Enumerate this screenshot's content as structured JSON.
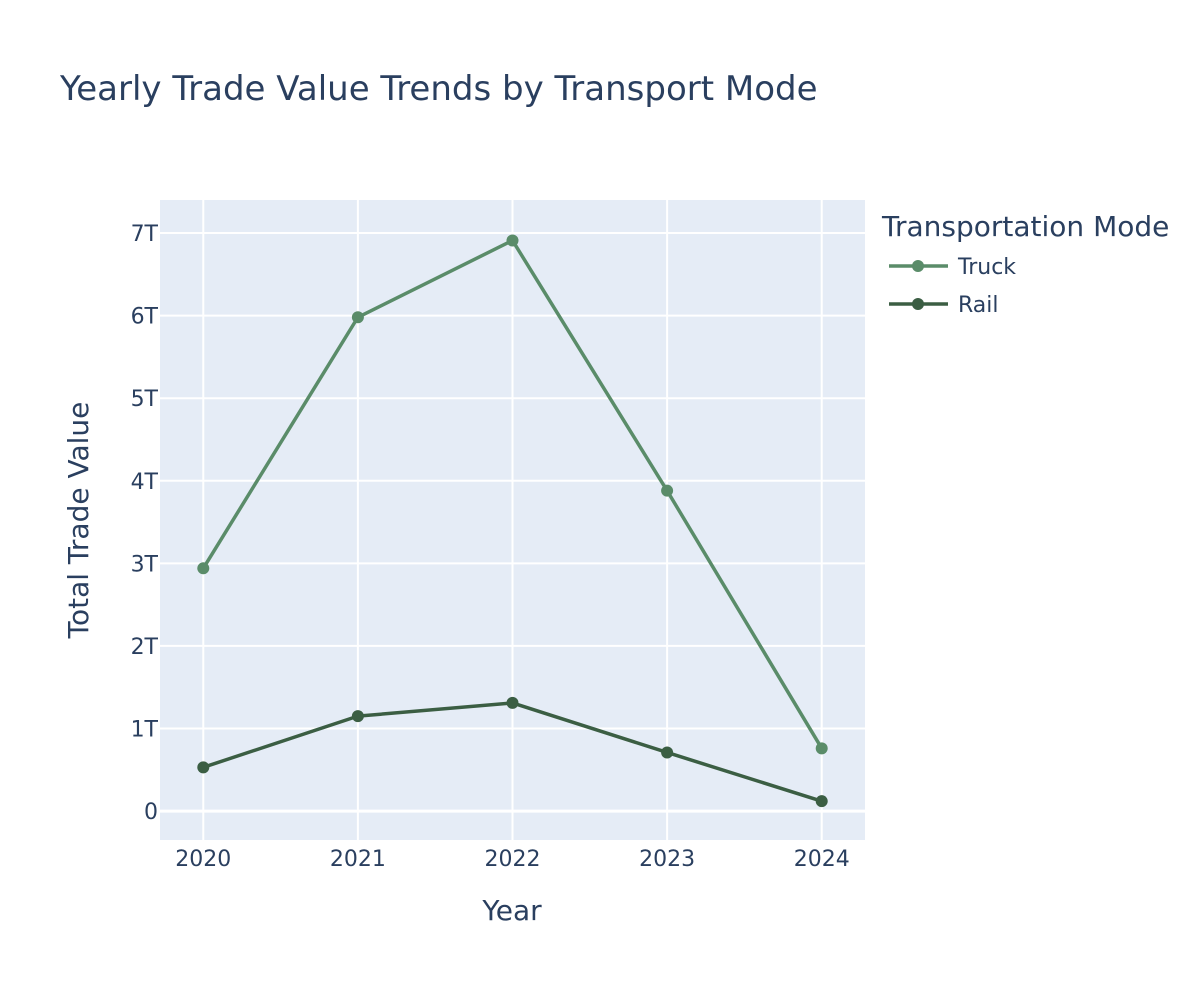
{
  "chart_data": {
    "type": "line",
    "title": "Yearly Trade Value Trends by Transport Mode",
    "xlabel": "Year",
    "ylabel": "Total Trade Value",
    "x": [
      2020,
      2021,
      2022,
      2023,
      2024
    ],
    "xlim": [
      2019.72,
      2024.28
    ],
    "ylim": [
      -350000000000.0,
      7400000000000.0
    ],
    "yticks": [
      0,
      1000000000000.0,
      2000000000000.0,
      3000000000000.0,
      4000000000000.0,
      5000000000000.0,
      6000000000000.0,
      7000000000000.0
    ],
    "ytick_labels": [
      "0",
      "1T",
      "2T",
      "3T",
      "4T",
      "5T",
      "6T",
      "7T"
    ],
    "xtick_labels": [
      "2020",
      "2021",
      "2022",
      "2023",
      "2024"
    ],
    "grid": true,
    "legend_title": "Transportation Mode",
    "legend_position": "right",
    "plot_background": "#e5ecf6",
    "series": [
      {
        "name": "Truck",
        "color": "#5a8c69",
        "values": [
          2940000000000.0,
          5980000000000.0,
          6910000000000.0,
          3880000000000.0,
          760000000000.0
        ]
      },
      {
        "name": "Rail",
        "color": "#3b5e43",
        "values": [
          530000000000.0,
          1150000000000.0,
          1310000000000.0,
          710000000000.0,
          120000000000.0
        ]
      }
    ]
  }
}
